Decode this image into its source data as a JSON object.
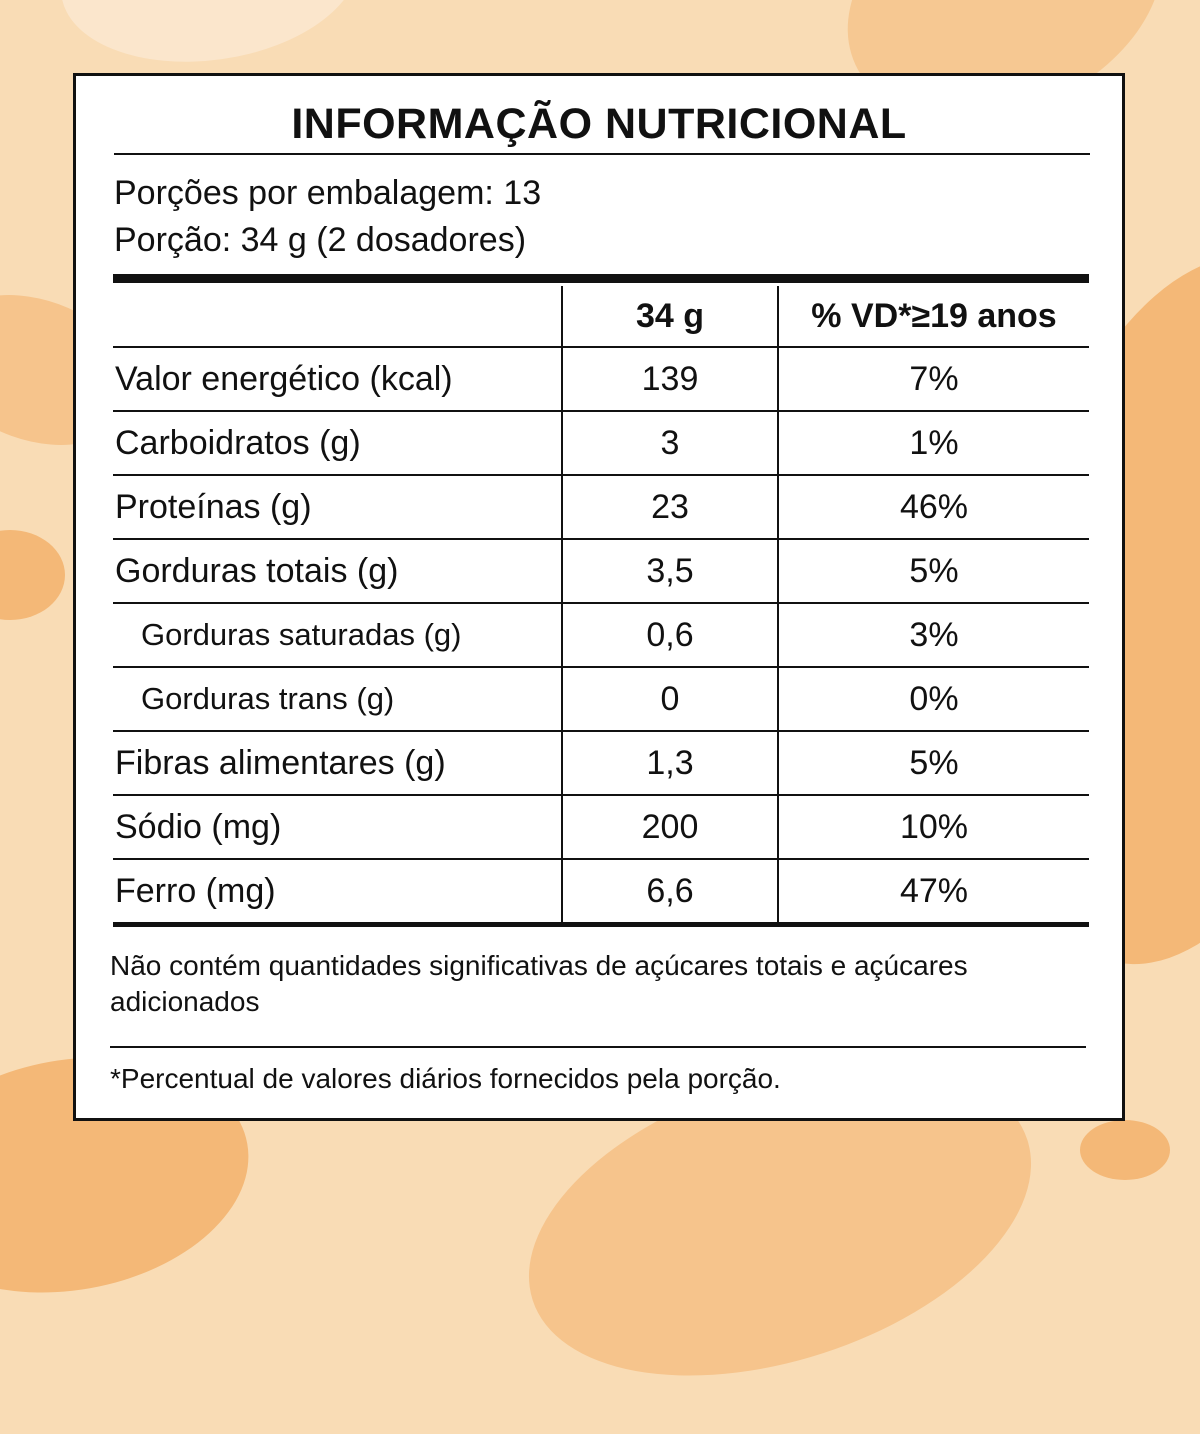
{
  "title": "INFORMAÇÃO NUTRICIONAL",
  "servings_per_package": "Porções por embalagem: 13",
  "serving_size": "Porção: 34 g (2 dosadores)",
  "table": {
    "header": {
      "col1": "",
      "col2": "34 g",
      "col3": "% VD*≥19 anos"
    },
    "rows": [
      {
        "nutrient": "Valor energético (kcal)",
        "amount": "139",
        "dv": "7%"
      },
      {
        "nutrient": "Carboidratos (g)",
        "amount": "3",
        "dv": "1%"
      },
      {
        "nutrient": "Proteínas (g)",
        "amount": "23",
        "dv": "46%"
      },
      {
        "nutrient": "Gorduras totais (g)",
        "amount": "3,5",
        "dv": "5%"
      },
      {
        "nutrient": "Gorduras saturadas (g)",
        "amount": "0,6",
        "dv": "3%"
      },
      {
        "nutrient": "Gorduras trans (g)",
        "amount": "0",
        "dv": "0%"
      },
      {
        "nutrient": "Fibras alimentares (g)",
        "amount": "1,3",
        "dv": "5%"
      },
      {
        "nutrient": "Sódio (mg)",
        "amount": "200",
        "dv": "10%"
      },
      {
        "nutrient": "Ferro (mg)",
        "amount": "6,6",
        "dv": "47%"
      }
    ]
  },
  "note_sugars": "Não contém quantidades significativas de açúcares totais e açúcares adicionados",
  "footnote": "*Percentual de valores diários fornecidos pela porção.",
  "colors": {
    "background": "#f9dcb5",
    "blob": "#f4b877",
    "panel": "#ffffff",
    "ink": "#111111"
  }
}
